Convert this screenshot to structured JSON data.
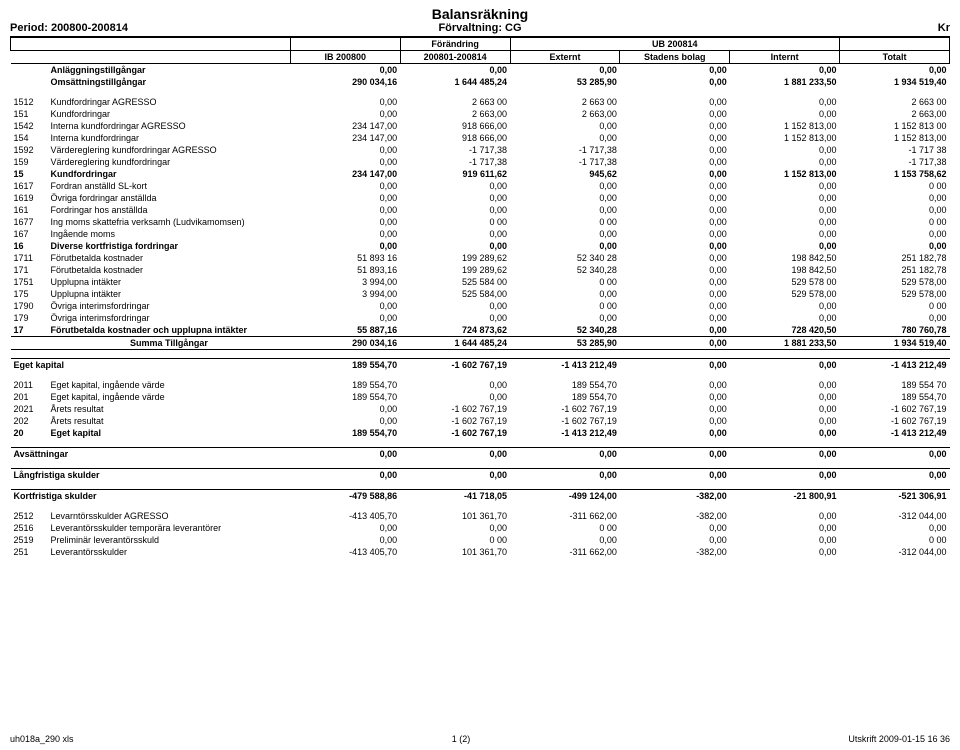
{
  "header": {
    "period": "Period: 200800-200814",
    "title": "Balansräkning",
    "subtitle": "Förvaltning: CG",
    "currency": "Kr",
    "ub": "UB 200814"
  },
  "columns": {
    "c1": "IB 200800",
    "c2a": "Förändring",
    "c2b": "200801-200814",
    "c3": "Externt",
    "c4": "Stadens bolag",
    "c5": "Internt",
    "c6": "Totalt"
  },
  "rows": [
    {
      "code": "",
      "label": "Anläggningstillgångar",
      "v": [
        "0,00",
        "0,00",
        "0,00",
        "0,00",
        "0,00",
        "0,00"
      ],
      "bold": true,
      "top": true
    },
    {
      "code": "",
      "label": "Omsättningstillgångar",
      "v": [
        "290 034,16",
        "1 644 485,24",
        "53 285,90",
        "0,00",
        "1 881 233,50",
        "1 934 519,40"
      ],
      "bold": true
    },
    {
      "spacer": true
    },
    {
      "code": "1512",
      "label": "Kundfordringar AGRESSO",
      "v": [
        "0,00",
        "2 663 00",
        "2 663 00",
        "0,00",
        "0,00",
        "2 663 00"
      ]
    },
    {
      "code": "151",
      "label": "Kundfordringar",
      "v": [
        "0,00",
        "2 663,00",
        "2 663,00",
        "0,00",
        "0,00",
        "2 663,00"
      ]
    },
    {
      "code": "1542",
      "label": "Interna kundfordringar AGRESSO",
      "v": [
        "234 147,00",
        "918 666,00",
        "0,00",
        "0,00",
        "1 152 813,00",
        "1 152 813 00"
      ]
    },
    {
      "code": "154",
      "label": "Interna kundfordringar",
      "v": [
        "234 147,00",
        "918 666,00",
        "0,00",
        "0,00",
        "1 152 813,00",
        "1 152 813,00"
      ]
    },
    {
      "code": "1592",
      "label": "Värdereglering kundfordringar AGRESSO",
      "v": [
        "0,00",
        "-1 717,38",
        "-1 717,38",
        "0,00",
        "0,00",
        "-1 717 38"
      ]
    },
    {
      "code": "159",
      "label": "Värdereglering kundfordringar",
      "v": [
        "0,00",
        "-1 717,38",
        "-1 717,38",
        "0,00",
        "0,00",
        "-1 717,38"
      ]
    },
    {
      "code": "15",
      "label": "Kundfordringar",
      "v": [
        "234 147,00",
        "919 611,62",
        "945,62",
        "0,00",
        "1 152 813,00",
        "1 153 758,62"
      ],
      "bold": true
    },
    {
      "code": "1617",
      "label": "Fordran anställd SL-kort",
      "v": [
        "0,00",
        "0,00",
        "0,00",
        "0,00",
        "0,00",
        "0 00"
      ]
    },
    {
      "code": "1619",
      "label": "Övriga fordringar anställda",
      "v": [
        "0,00",
        "0,00",
        "0,00",
        "0,00",
        "0,00",
        "0,00"
      ]
    },
    {
      "code": "161",
      "label": "Fordringar hos anställda",
      "v": [
        "0,00",
        "0,00",
        "0,00",
        "0,00",
        "0,00",
        "0,00"
      ]
    },
    {
      "code": "1677",
      "label": "Ing moms skattefria verksamh (Ludvikamomsen)",
      "v": [
        "0,00",
        "0 00",
        "0 00",
        "0,00",
        "0,00",
        "0 00"
      ]
    },
    {
      "code": "167",
      "label": "Ingående moms",
      "v": [
        "0,00",
        "0,00",
        "0,00",
        "0,00",
        "0,00",
        "0,00"
      ]
    },
    {
      "code": "16",
      "label": "Diverse kortfristiga fordringar",
      "v": [
        "0,00",
        "0,00",
        "0,00",
        "0,00",
        "0,00",
        "0,00"
      ],
      "bold": true
    },
    {
      "code": "1711",
      "label": "Förutbetalda kostnader",
      "v": [
        "51 893 16",
        "199 289,62",
        "52 340 28",
        "0,00",
        "198 842,50",
        "251 182,78"
      ]
    },
    {
      "code": "171",
      "label": "Förutbetalda kostnader",
      "v": [
        "51 893,16",
        "199 289,62",
        "52 340,28",
        "0,00",
        "198 842,50",
        "251 182,78"
      ]
    },
    {
      "code": "1751",
      "label": "Upplupna intäkter",
      "v": [
        "3 994,00",
        "525 584 00",
        "0 00",
        "0,00",
        "529 578 00",
        "529 578,00"
      ]
    },
    {
      "code": "175",
      "label": "Upplupna intäkter",
      "v": [
        "3 994,00",
        "525 584,00",
        "0,00",
        "0,00",
        "529 578,00",
        "529 578,00"
      ]
    },
    {
      "code": "1790",
      "label": "Övriga interimsfordringar",
      "v": [
        "0,00",
        "0,00",
        "0 00",
        "0,00",
        "0,00",
        "0 00"
      ]
    },
    {
      "code": "179",
      "label": "Övriga interimsfordringar",
      "v": [
        "0,00",
        "0,00",
        "0,00",
        "0,00",
        "0,00",
        "0,00"
      ]
    },
    {
      "code": "17",
      "label": "Förutbetalda kostnader och upplupna intäkter",
      "v": [
        "55 887,16",
        "724 873,62",
        "52 340,28",
        "0,00",
        "728 420,50",
        "780 760,78"
      ],
      "bold": true
    }
  ],
  "summa": {
    "label": "Summa Tillgångar",
    "v": [
      "290 034,16",
      "1 644 485,24",
      "53 285,90",
      "0,00",
      "1 881 233,50",
      "1 934 519,40"
    ]
  },
  "eget_head": {
    "label": "Eget kapital",
    "v": [
      "189 554,70",
      "-1 602 767,19",
      "-1 413 212,49",
      "0,00",
      "0,00",
      "-1 413 212,49"
    ]
  },
  "eget_rows": [
    {
      "code": "2011",
      "label": "Eget kapital, ingående värde",
      "v": [
        "189 554,70",
        "0,00",
        "189 554,70",
        "0,00",
        "0,00",
        "189 554 70"
      ]
    },
    {
      "code": "201",
      "label": "Eget kapital, ingående värde",
      "v": [
        "189 554,70",
        "0,00",
        "189 554,70",
        "0,00",
        "0,00",
        "189 554,70"
      ]
    },
    {
      "code": "2021",
      "label": "Årets resultat",
      "v": [
        "0,00",
        "-1 602 767,19",
        "-1 602 767,19",
        "0,00",
        "0,00",
        "-1 602 767,19"
      ]
    },
    {
      "code": "202",
      "label": "Årets resultat",
      "v": [
        "0,00",
        "-1 602 767,19",
        "-1 602 767,19",
        "0,00",
        "0,00",
        "-1 602 767,19"
      ]
    },
    {
      "code": "20",
      "label": "Eget kapital",
      "v": [
        "189 554,70",
        "-1 602 767,19",
        "-1 413 212,49",
        "0,00",
        "0,00",
        "-1 413 212,49"
      ],
      "bold": true
    }
  ],
  "avs": {
    "label": "Avsättningar",
    "v": [
      "0,00",
      "0,00",
      "0,00",
      "0,00",
      "0,00",
      "0,00"
    ]
  },
  "lang": {
    "label": "Långfristiga skulder",
    "v": [
      "0,00",
      "0,00",
      "0,00",
      "0,00",
      "0,00",
      "0,00"
    ]
  },
  "kort": {
    "label": "Kortfristiga skulder",
    "v": [
      "-479 588,86",
      "-41 718,05",
      "-499 124,00",
      "-382,00",
      "-21 800,91",
      "-521 306,91"
    ]
  },
  "kort_rows": [
    {
      "code": "2512",
      "label": "Levarntörsskulder AGRESSO",
      "v": [
        "-413 405,70",
        "101 361,70",
        "-311 662,00",
        "-382,00",
        "0,00",
        "-312 044,00"
      ]
    },
    {
      "code": "2516",
      "label": "Leverantörsskulder temporära leverantörer",
      "v": [
        "0,00",
        "0,00",
        "0 00",
        "0,00",
        "0,00",
        "0,00"
      ]
    },
    {
      "code": "2519",
      "label": "Preliminär leverantörsskuld",
      "v": [
        "0,00",
        "0 00",
        "0,00",
        "0,00",
        "0,00",
        "0 00"
      ]
    },
    {
      "code": "251",
      "label": "Leverantörsskulder",
      "v": [
        "-413 405,70",
        "101 361,70",
        "-311 662,00",
        "-382,00",
        "0,00",
        "-312 044,00"
      ]
    }
  ],
  "footer": {
    "left": "uh018a_290 xls",
    "center": "1 (2)",
    "right": "Utskrift  2009-01-15 16 36"
  }
}
